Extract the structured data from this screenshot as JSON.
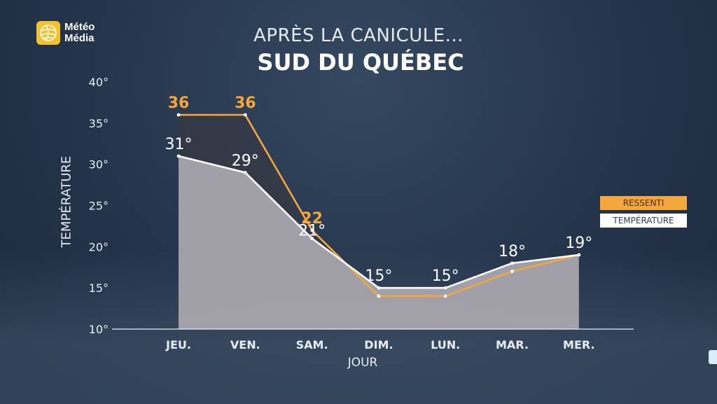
{
  "brand": {
    "line1": "Météo",
    "line2": "Média",
    "logo_icon": "globe-icon",
    "color": "#f2c230"
  },
  "chart_data": {
    "type": "area",
    "title": "APRÈS LA CANICULE...",
    "subtitle": "SUD DU QUÉBEC",
    "xlabel": "JOUR",
    "ylabel": "TEMPÉRATURE",
    "categories": [
      "JEU.",
      "VEN.",
      "SAM.",
      "DIM.",
      "LUN.",
      "MAR.",
      "MER."
    ],
    "ylim": [
      10,
      40
    ],
    "yticks": [
      10,
      15,
      20,
      25,
      30,
      35,
      40
    ],
    "ytick_labels": [
      "10°",
      "15°",
      "20°",
      "25°",
      "30°",
      "35°",
      "40°"
    ],
    "grid": false,
    "legend_position": "right",
    "series": [
      {
        "name": "RESSENTI",
        "color": "#f3a73c",
        "values": [
          36,
          36,
          22,
          14,
          14,
          17,
          19
        ],
        "labels": [
          "36",
          "36",
          "22",
          "",
          "",
          "",
          ""
        ]
      },
      {
        "name": "TEMPÉRATURE",
        "color": "#ffffff",
        "values": [
          31,
          29,
          21,
          15,
          15,
          18,
          19
        ],
        "labels": [
          "31°",
          "29°",
          "21°",
          "15°",
          "15°",
          "18°",
          "19°"
        ]
      }
    ]
  }
}
